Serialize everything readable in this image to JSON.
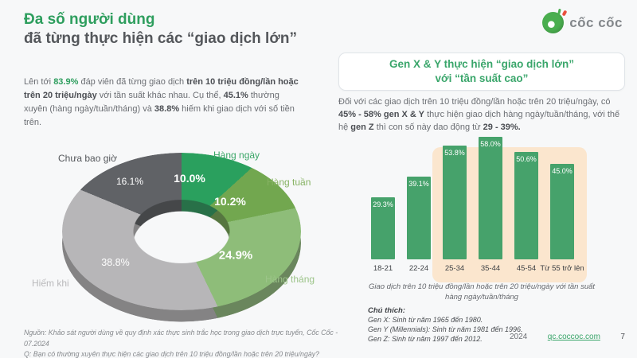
{
  "header": {
    "title_line1": "Đa số người dùng",
    "title_line2": "đã từng thực hiện các “giao dịch lớn”",
    "logo_text": "cốc cốc"
  },
  "left_panel": {
    "intro_runs": [
      {
        "text": "Lên tới ",
        "style": "n"
      },
      {
        "text": "83.9%",
        "style": "gb"
      },
      {
        "text": " đáp viên đã từng giao dịch ",
        "style": "n"
      },
      {
        "text": "trên 10 triệu đồng/lần hoặc trên 20 triệu/ngày",
        "style": "b"
      },
      {
        "text": " với tần suất khác nhau. Cụ thể, ",
        "style": "n"
      },
      {
        "text": "45.1%",
        "style": "b"
      },
      {
        "text": " thường xuyên (hàng ngày/tuần/tháng) và ",
        "style": "n"
      },
      {
        "text": "38.8%",
        "style": "b"
      },
      {
        "text": " hiếm khi giao dịch với số tiền trên.",
        "style": "n"
      }
    ]
  },
  "right_panel": {
    "box_title_line1": "Gen X & Y thực hiện “giao dịch lớn”",
    "box_title_line2": "với “tần suất cao”",
    "body_runs": [
      {
        "text": "Đối với các giao dịch trên 10 triệu đồng/lần hoặc trên 20 triệu/ngày, có ",
        "style": "n"
      },
      {
        "text": "45% - 58% gen X & Y",
        "style": "b"
      },
      {
        "text": " thực hiện giao dịch hàng ngày/tuần/tháng, với thế hệ ",
        "style": "n"
      },
      {
        "text": "gen Z",
        "style": "b"
      },
      {
        "text": " thì con số này dao động từ ",
        "style": "n"
      },
      {
        "text": "29 - 39%.",
        "style": "b"
      }
    ],
    "notes_heading": "Chú thích:",
    "notes_lines": [
      "Gen X: Sinh từ năm 1965 đến 1980.",
      "Gen Y (Millennials): Sinh từ năm 1981 đến 1996.",
      "Gen Z: Sinh từ năm 1997 đến 2012."
    ]
  },
  "footer": {
    "source": "Nguồn: Khảo sát người dùng về quy định xác thực sinh trắc học trong giao dịch trực tuyến, Cốc Cốc - 07.2024",
    "question": "Q: Bạn có thường xuyên thực hiện các giao dịch trên 10 triệu đồng/lần hoặc trên 20 triệu/ngày?",
    "year": "2024",
    "link": "qc.coccoc.com",
    "page": "7"
  },
  "chart_data": [
    {
      "type": "pie",
      "variant": "3d-donut",
      "labels": [
        "Hàng ngày",
        "Hàng tuần",
        "Hàng tháng",
        "Hiếm khi",
        "Chưa bao giờ"
      ],
      "values": [
        10.0,
        10.2,
        24.9,
        38.8,
        16.1
      ],
      "value_labels": [
        "10.0%",
        "10.2%",
        "24.9%",
        "38.8%",
        "16.1%"
      ],
      "colors": [
        "#2aa05e",
        "#72a74f",
        "#8ebd79",
        "#b7b6b8",
        "#606266"
      ],
      "label_colors": [
        "#3aa667",
        "#86b263",
        "#9cc489",
        "#b9b9bb",
        "#54575b"
      ],
      "start_angle_deg": 0,
      "direction": "clockwise"
    },
    {
      "type": "bar",
      "categories": [
        "18-21",
        "22-24",
        "25-34",
        "35-44",
        "45-54",
        "Từ 55 trở lên"
      ],
      "values": [
        29.3,
        39.1,
        53.8,
        58.0,
        50.6,
        45.0
      ],
      "value_labels": [
        "29.3%",
        "39.1%",
        "53.8%",
        "58.0%",
        "50.6%",
        "45.0%"
      ],
      "bar_color": "#46a26b",
      "highlight_range": [
        2,
        5
      ],
      "highlight_color": "#fbe6ce",
      "ylim": [
        0,
        62
      ],
      "grid": false,
      "legend": "none",
      "caption": "Giao dịch trên 10 triệu đồng/lần hoặc trên 20 triệu/ngày với tần suất hàng ngày/tuần/tháng"
    }
  ]
}
